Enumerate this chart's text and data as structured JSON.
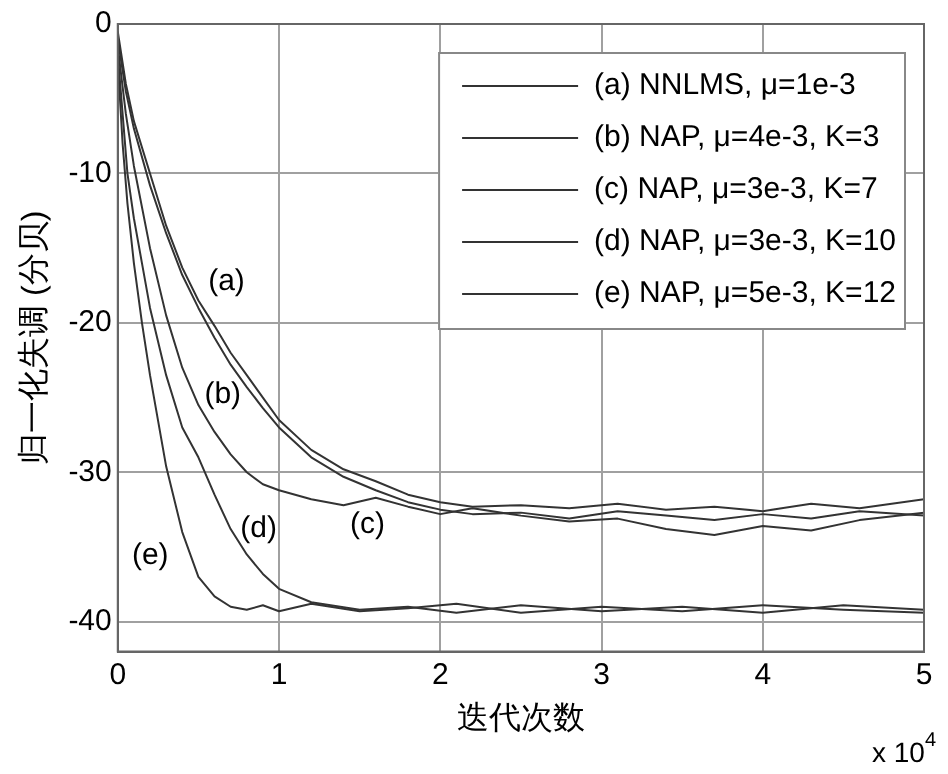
{
  "chart_data": {
    "type": "line",
    "xlabel": "迭代次数",
    "ylabel": "归一化失调 (分贝)",
    "xlim": [
      0,
      5
    ],
    "xticks": [
      0,
      1,
      2,
      3,
      4,
      5
    ],
    "ylim": [
      -42,
      0
    ],
    "yticks": [
      -40,
      -30,
      -20,
      -10,
      0
    ],
    "grid": true,
    "legend": "top right",
    "marker": "none",
    "line_style": "solid",
    "series": [
      {
        "name": "(a) NNLMS, μ=1e-3",
        "color": "#333333",
        "x": [
          0,
          0.05,
          0.1,
          0.2,
          0.3,
          0.4,
          0.5,
          0.6,
          0.7,
          0.8,
          0.9,
          1.0,
          1.2,
          1.4,
          1.6,
          1.8,
          2.0,
          2.2,
          2.5,
          2.8,
          3.1,
          3.4,
          3.7,
          4.0,
          4.3,
          4.6,
          5.0
        ],
        "values": [
          -0.5,
          -4,
          -6.5,
          -10,
          -13.5,
          -16.3,
          -18.5,
          -20.2,
          -22,
          -23.5,
          -25,
          -26.5,
          -28.5,
          -29.8,
          -30.6,
          -31.5,
          -32,
          -32.3,
          -32.2,
          -32.4,
          -32.1,
          -32.5,
          -32.3,
          -32.6,
          -32.1,
          -32.4,
          -31.8
        ]
      },
      {
        "name": "(b) NAP, μ=4e-3, K=3",
        "color": "#333333",
        "x": [
          0,
          0.05,
          0.1,
          0.2,
          0.3,
          0.4,
          0.5,
          0.6,
          0.7,
          0.8,
          0.9,
          1.0,
          1.2,
          1.4,
          1.6,
          1.8,
          2.0,
          2.2,
          2.5,
          2.8,
          3.1,
          3.4,
          3.7,
          4.0,
          4.3,
          4.6,
          5.0
        ],
        "values": [
          -1,
          -4.5,
          -7,
          -10.8,
          -14,
          -16.8,
          -19,
          -21,
          -22.8,
          -24.3,
          -25.7,
          -27,
          -29,
          -30.3,
          -31.2,
          -32,
          -32.5,
          -32.8,
          -32.7,
          -33.1,
          -32.6,
          -32.9,
          -33.2,
          -32.8,
          -33.1,
          -32.6,
          -32.9
        ]
      },
      {
        "name": "(c) NAP, μ=3e-3, K=7",
        "color": "#333333",
        "x": [
          0,
          0.05,
          0.1,
          0.2,
          0.3,
          0.4,
          0.5,
          0.6,
          0.7,
          0.8,
          0.9,
          1.0,
          1.2,
          1.4,
          1.6,
          1.8,
          2.0,
          2.2,
          2.5,
          2.8,
          3.1,
          3.4,
          3.7,
          4.0,
          4.3,
          4.6,
          5.0
        ],
        "values": [
          -1.5,
          -6,
          -9.5,
          -15,
          -19.5,
          -23,
          -25.5,
          -27.3,
          -28.8,
          -30,
          -30.8,
          -31.2,
          -31.8,
          -32.2,
          -31.7,
          -32.3,
          -32.8,
          -32.4,
          -32.9,
          -33.3,
          -33.1,
          -33.8,
          -34.2,
          -33.6,
          -33.9,
          -33.2,
          -32.7
        ]
      },
      {
        "name": "(d) NAP, μ=3e-3, K=10",
        "color": "#333333",
        "x": [
          0,
          0.03,
          0.06,
          0.1,
          0.15,
          0.2,
          0.3,
          0.4,
          0.5,
          0.6,
          0.7,
          0.8,
          0.9,
          1.0,
          1.2,
          1.5,
          1.8,
          2.1,
          2.5,
          3.0,
          3.5,
          4.0,
          4.5,
          5.0
        ],
        "values": [
          -2,
          -6,
          -10,
          -13,
          -16,
          -19,
          -23.5,
          -27,
          -29,
          -31.5,
          -33.8,
          -35.5,
          -36.8,
          -37.8,
          -38.7,
          -39.2,
          -39,
          -39.4,
          -38.9,
          -39.3,
          -39,
          -39.4,
          -38.9,
          -39.2
        ]
      },
      {
        "name": "(e) NAP, μ=5e-3, K=12",
        "color": "#333333",
        "x": [
          0,
          0.03,
          0.06,
          0.1,
          0.15,
          0.2,
          0.3,
          0.4,
          0.5,
          0.6,
          0.7,
          0.8,
          0.9,
          1.0,
          1.2,
          1.5,
          1.8,
          2.1,
          2.5,
          3.0,
          3.5,
          4.0,
          4.5,
          5.0
        ],
        "values": [
          -2.5,
          -8,
          -12,
          -16,
          -20,
          -23.5,
          -29.6,
          -34,
          -37,
          -38.3,
          -39,
          -39.2,
          -38.9,
          -39.3,
          -38.8,
          -39.3,
          -39.1,
          -38.8,
          -39.4,
          -39,
          -39.3,
          -38.9,
          -39.2,
          -39.4
        ]
      }
    ],
    "annotations": [
      "(a)",
      "(b)",
      "(c)",
      "(d)",
      "(e)",
      "x 10$^{4}$"
    ]
  }
}
